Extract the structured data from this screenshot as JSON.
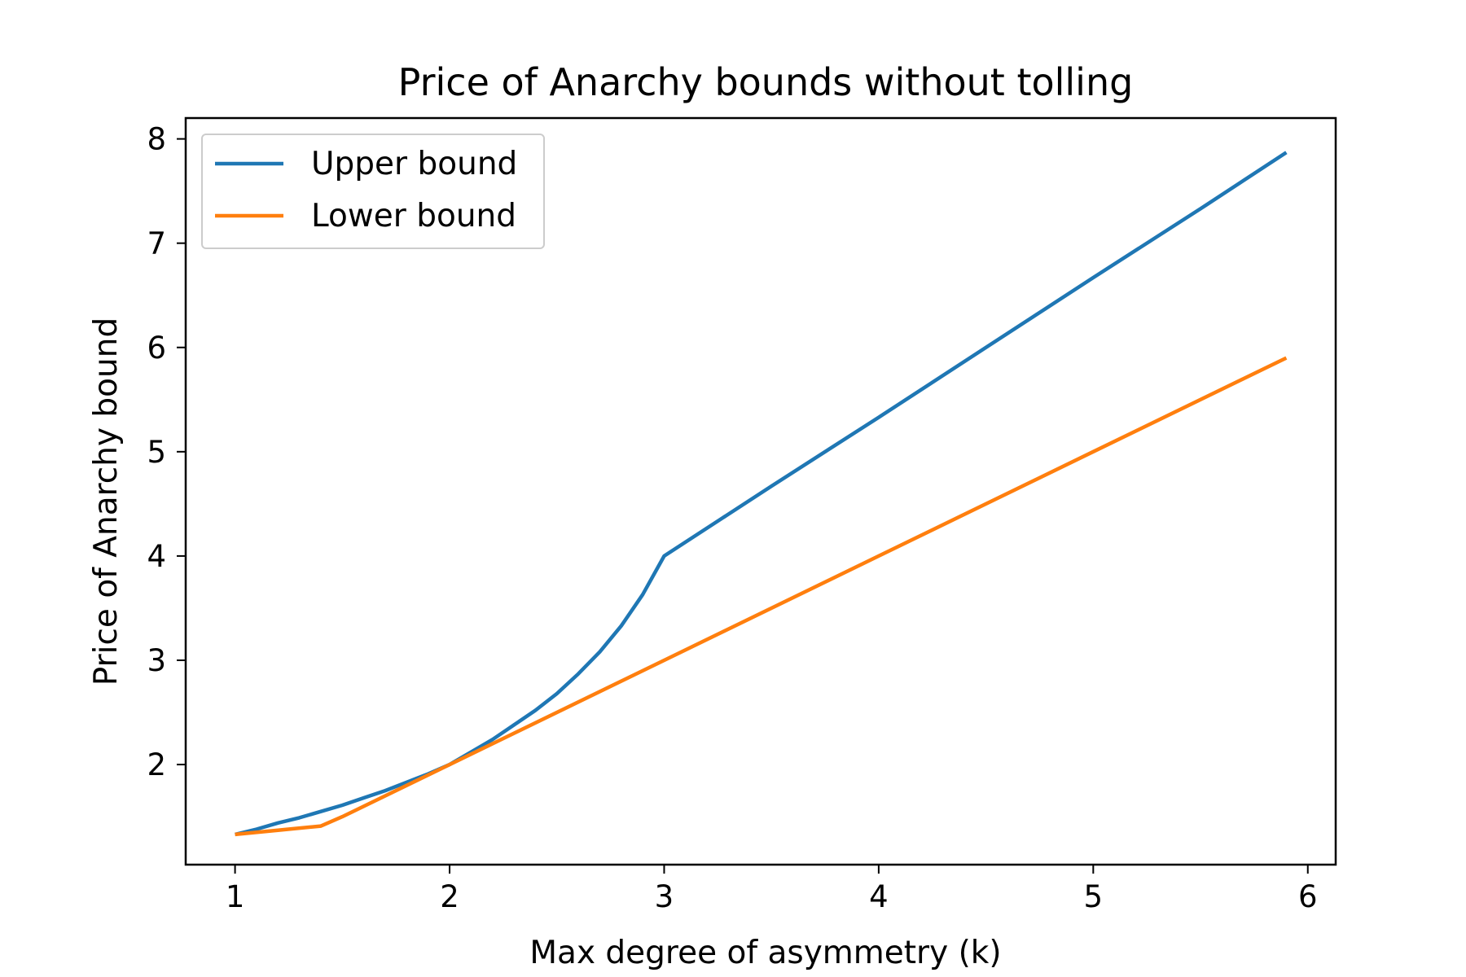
{
  "chart_data": {
    "type": "line",
    "title": "Price of Anarchy bounds without tolling",
    "xlabel": "Max degree of asymmetry (k)",
    "ylabel": "Price of Anarchy bound",
    "xlim": [
      0.77,
      6.13
    ],
    "ylim": [
      1.04,
      8.2
    ],
    "xticks": [
      1,
      2,
      3,
      4,
      5,
      6
    ],
    "yticks": [
      2,
      3,
      4,
      5,
      6,
      7,
      8
    ],
    "grid": false,
    "legend": {
      "position": "top-left",
      "entries": [
        "Upper bound",
        "Lower bound"
      ]
    },
    "series": [
      {
        "name": "Upper bound",
        "color": "#1f77b4",
        "x": [
          1.0,
          1.1,
          1.2,
          1.3,
          1.4,
          1.5,
          1.6,
          1.7,
          1.8,
          1.9,
          2.0,
          2.1,
          2.2,
          2.3,
          2.4,
          2.5,
          2.6,
          2.7,
          2.8,
          2.9,
          3.0,
          3.5,
          4.0,
          4.5,
          5.0,
          5.5,
          5.9
        ],
        "values": [
          1.33,
          1.38,
          1.44,
          1.49,
          1.55,
          1.61,
          1.68,
          1.75,
          1.83,
          1.91,
          2.0,
          2.12,
          2.24,
          2.38,
          2.52,
          2.68,
          2.87,
          3.08,
          3.33,
          3.63,
          4.0,
          4.67,
          5.33,
          6.0,
          6.67,
          7.33,
          7.87
        ]
      },
      {
        "name": "Lower bound",
        "color": "#ff7f0e",
        "x": [
          1.0,
          1.2,
          1.4,
          1.5,
          2.0,
          3.0,
          4.0,
          5.0,
          5.9
        ],
        "values": [
          1.33,
          1.37,
          1.41,
          1.5,
          2.0,
          3.0,
          4.0,
          5.0,
          5.9
        ]
      }
    ]
  }
}
